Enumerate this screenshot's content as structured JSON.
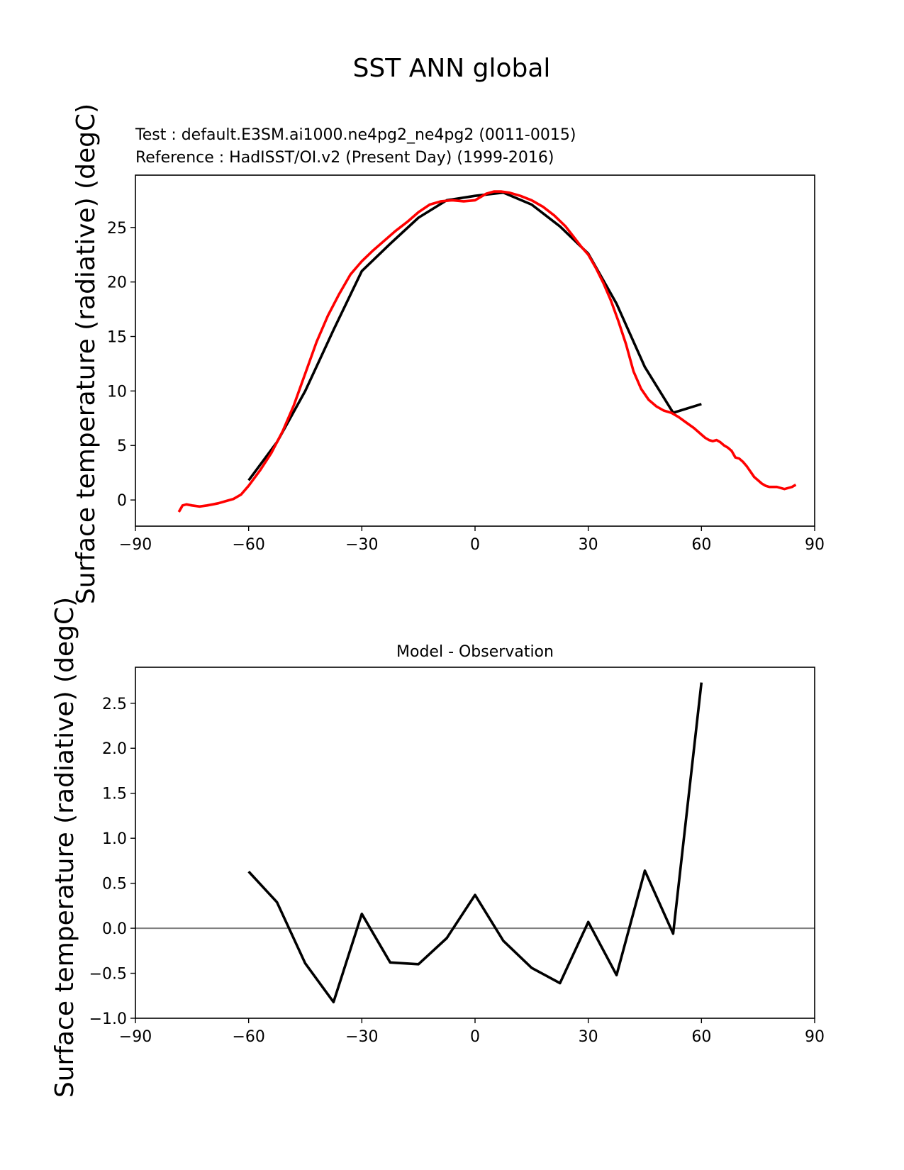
{
  "figure": {
    "title": "SST ANN global",
    "test_label": "Test : default.E3SM.ai1000.ne4pg2_ne4pg2 (0011-0015)",
    "reference_label": "Reference : HadISST/OI.v2 (Present Day) (1999-2016)",
    "test_color": "#000000",
    "reference_color": "#ff0000",
    "zero_line_color": "#808080"
  },
  "chart_data": [
    {
      "type": "line",
      "title": "",
      "xlabel": "",
      "ylabel": "Surface temperature (radiative) (degC)",
      "xlim": [
        -90,
        90
      ],
      "ylim": [
        -2.4,
        29.8
      ],
      "xticks": [
        -90,
        -60,
        -30,
        0,
        30,
        60,
        90
      ],
      "yticks": [
        0,
        5,
        10,
        15,
        20,
        25
      ],
      "grid": false,
      "series": [
        {
          "name": "Test : default.E3SM.ai1000.ne4pg2_ne4pg2 (0011-0015)",
          "color": "#000000",
          "x": [
            -60,
            -52.5,
            -45,
            -37.5,
            -30,
            -22.5,
            -15,
            -7.5,
            0,
            7.5,
            15,
            22.5,
            30,
            37.5,
            45,
            52.5,
            60
          ],
          "y": [
            1.8,
            5.3,
            10.0,
            15.6,
            21.0,
            23.5,
            25.9,
            27.5,
            27.9,
            28.2,
            27.1,
            25.1,
            22.6,
            18.0,
            12.2,
            8.0,
            8.8
          ]
        },
        {
          "name": "Reference : HadISST/OI.v2 (Present Day) (1999-2016)",
          "color": "#ff0000",
          "x": [
            -78.5,
            -77.5,
            -76.5,
            -75,
            -73,
            -71,
            -69.5,
            -68,
            -66,
            -64,
            -62,
            -60,
            -57,
            -54,
            -51,
            -48,
            -45,
            -42,
            -39,
            -36,
            -33,
            -30,
            -27,
            -24,
            -21,
            -18,
            -15,
            -12,
            -9,
            -6,
            -3,
            0,
            3,
            5,
            7,
            9,
            12,
            15,
            18,
            21,
            24,
            26,
            28,
            30,
            32,
            34,
            36,
            38,
            40,
            42,
            44,
            46,
            48,
            50,
            52,
            54,
            56,
            58,
            60,
            61,
            62,
            63,
            64,
            65,
            66,
            67,
            68,
            69,
            70,
            71,
            72,
            73,
            74,
            75,
            76,
            77,
            78,
            79,
            80,
            81,
            82,
            83,
            84,
            85
          ],
          "y": [
            -1.1,
            -0.5,
            -0.4,
            -0.5,
            -0.6,
            -0.5,
            -0.4,
            -0.3,
            -0.1,
            0.1,
            0.5,
            1.3,
            2.7,
            4.3,
            6.3,
            8.7,
            11.6,
            14.5,
            16.9,
            18.9,
            20.7,
            21.9,
            22.9,
            23.8,
            24.7,
            25.5,
            26.4,
            27.1,
            27.4,
            27.5,
            27.4,
            27.5,
            28.1,
            28.3,
            28.3,
            28.2,
            27.9,
            27.5,
            26.9,
            26.1,
            25.1,
            24.2,
            23.3,
            22.5,
            21.3,
            19.9,
            18.3,
            16.4,
            14.3,
            11.8,
            10.2,
            9.2,
            8.6,
            8.2,
            8.0,
            7.6,
            7.1,
            6.6,
            6.0,
            5.7,
            5.5,
            5.4,
            5.5,
            5.3,
            5.0,
            4.8,
            4.5,
            3.9,
            3.8,
            3.5,
            3.1,
            2.6,
            2.1,
            1.8,
            1.5,
            1.3,
            1.2,
            1.2,
            1.2,
            1.1,
            1.0,
            1.1,
            1.2,
            1.4
          ]
        }
      ]
    },
    {
      "type": "line",
      "title": "Model - Observation",
      "xlabel": "",
      "ylabel": "Surface temperature (radiative) (degC)",
      "xlim": [
        -90,
        90
      ],
      "ylim": [
        -1.0,
        2.9
      ],
      "xticks": [
        -90,
        -60,
        -30,
        0,
        30,
        60,
        90
      ],
      "yticks": [
        -1.0,
        -0.5,
        0.0,
        0.5,
        1.0,
        1.5,
        2.0,
        2.5
      ],
      "ytick_labels": [
        "−1.0",
        "−0.5",
        "0.0",
        "0.5",
        "1.0",
        "1.5",
        "2.0",
        "2.5"
      ],
      "grid": false,
      "reference_line": 0,
      "series": [
        {
          "name": "Model - Observation",
          "color": "#000000",
          "x": [
            -60,
            -52.5,
            -45,
            -37.5,
            -30,
            -22.5,
            -15,
            -7.5,
            0,
            7.5,
            15,
            22.5,
            30,
            37.5,
            45,
            52.5,
            60
          ],
          "y": [
            0.63,
            0.29,
            -0.39,
            -0.82,
            0.16,
            -0.38,
            -0.4,
            -0.11,
            0.37,
            -0.14,
            -0.44,
            -0.61,
            0.07,
            -0.52,
            0.64,
            -0.06,
            2.73
          ]
        }
      ]
    }
  ]
}
